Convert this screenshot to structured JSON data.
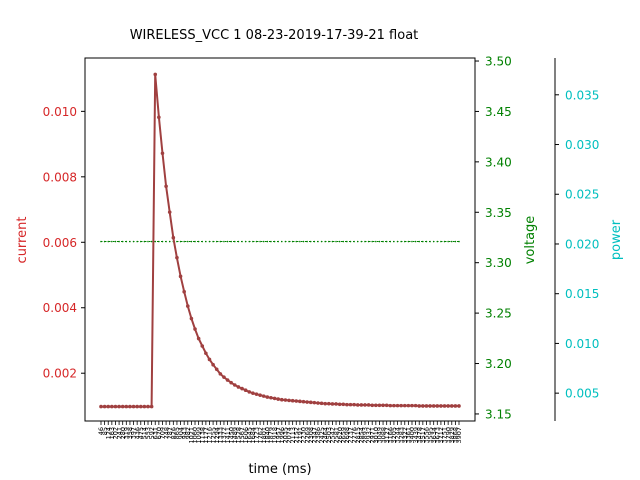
{
  "colors": {
    "current": "#d62728",
    "current_line": "#a04040",
    "voltage": "#008000",
    "power": "#00bfbf",
    "axis": "#000000"
  },
  "chart_data": {
    "type": "line",
    "title": "WIRELESS_VCC   1   08-23-2019-17-39-21   float",
    "xlabel": "time (ms)",
    "x_tick_labels": [
      "46",
      "85",
      "124",
      "163",
      "202",
      "241",
      "280",
      "319",
      "358",
      "397",
      "436",
      "475",
      "514",
      "553",
      "592",
      "631",
      "670",
      "709",
      "748",
      "787",
      "826",
      "865",
      "904",
      "943",
      "982",
      "1021",
      "1060",
      "1099",
      "1138",
      "1177",
      "1216",
      "1255",
      "1294",
      "1333",
      "1372",
      "1411",
      "1450",
      "1489",
      "1528",
      "1567",
      "1606",
      "1645",
      "1684",
      "1723",
      "1762",
      "1801",
      "1840",
      "1879",
      "1918",
      "1957",
      "1996",
      "2035",
      "2074",
      "2113",
      "2152",
      "2191",
      "2230",
      "2269",
      "2308",
      "2347",
      "2386",
      "2425",
      "2464",
      "2503",
      "2542",
      "2581",
      "2620",
      "2659",
      "2698",
      "2737",
      "2776",
      "2815",
      "2854",
      "2893",
      "2932",
      "2971",
      "3010",
      "3049",
      "3088",
      "3127",
      "3166",
      "3205",
      "3244",
      "3283",
      "3322",
      "3361",
      "3400",
      "3439",
      "3478",
      "3517",
      "3556",
      "3595",
      "3634",
      "3673",
      "3712",
      "3751",
      "3790",
      "3829",
      "3868",
      "3907"
    ],
    "xlim": [
      46,
      3907
    ],
    "axes": {
      "left": {
        "label": "current",
        "ylim": [
          0.00054,
          0.01163
        ],
        "ticks": [
          0.002,
          0.004,
          0.006,
          0.008,
          0.01
        ],
        "tick_labels": [
          "0.002",
          "0.004",
          "0.006",
          "0.008",
          "0.010"
        ]
      },
      "right": {
        "label": "voltage",
        "ylim": [
          3.143,
          3.503
        ],
        "ticks": [
          3.15,
          3.2,
          3.25,
          3.3,
          3.35,
          3.4,
          3.45,
          3.5
        ],
        "tick_labels": [
          "3.15",
          "3.20",
          "3.25",
          "3.30",
          "3.35",
          "3.40",
          "3.45",
          "3.50"
        ]
      },
      "third": {
        "label": "power",
        "ylim": [
          0.0022,
          0.0387
        ],
        "ticks": [
          0.005,
          0.01,
          0.015,
          0.02,
          0.025,
          0.03,
          0.035
        ],
        "tick_labels": [
          "0.005",
          "0.010",
          "0.015",
          "0.020",
          "0.025",
          "0.030",
          "0.035"
        ]
      }
    },
    "series": [
      {
        "axis": "left",
        "values": [
          0.00098,
          0.00098,
          0.00098,
          0.00098,
          0.00098,
          0.00098,
          0.00098,
          0.00098,
          0.00098,
          0.00098,
          0.00098,
          0.00098,
          0.00098,
          0.00098,
          0.00098,
          0.01113,
          0.00982,
          0.00872,
          0.00771,
          0.00692,
          0.00614,
          0.00553,
          0.00496,
          0.00449,
          0.00405,
          0.00367,
          0.00335,
          0.00306,
          0.00283,
          0.00261,
          0.00242,
          0.00226,
          0.00212,
          0.00198,
          0.00188,
          0.00179,
          0.00171,
          0.00164,
          0.00158,
          0.00153,
          0.00148,
          0.00143,
          0.00139,
          0.00136,
          0.00133,
          0.0013,
          0.00127,
          0.00125,
          0.00123,
          0.00121,
          0.00119,
          0.00118,
          0.00117,
          0.00116,
          0.00115,
          0.00114,
          0.00113,
          0.00112,
          0.00111,
          0.0011,
          0.00109,
          0.00108,
          0.00107,
          0.00107,
          0.00106,
          0.00106,
          0.00105,
          0.00105,
          0.00104,
          0.00104,
          0.00104,
          0.00103,
          0.00103,
          0.00103,
          0.00103,
          0.00102,
          0.00102,
          0.00102,
          0.00102,
          0.00102,
          0.00101,
          0.00101,
          0.00101,
          0.00101,
          0.00101,
          0.00101,
          0.00101,
          0.00101,
          0.001,
          0.001,
          0.001,
          0.001,
          0.001,
          0.001,
          0.001,
          0.001,
          0.001,
          0.001,
          0.001,
          0.001
        ]
      },
      {
        "axis": "right",
        "constant": 3.321
      }
    ]
  }
}
